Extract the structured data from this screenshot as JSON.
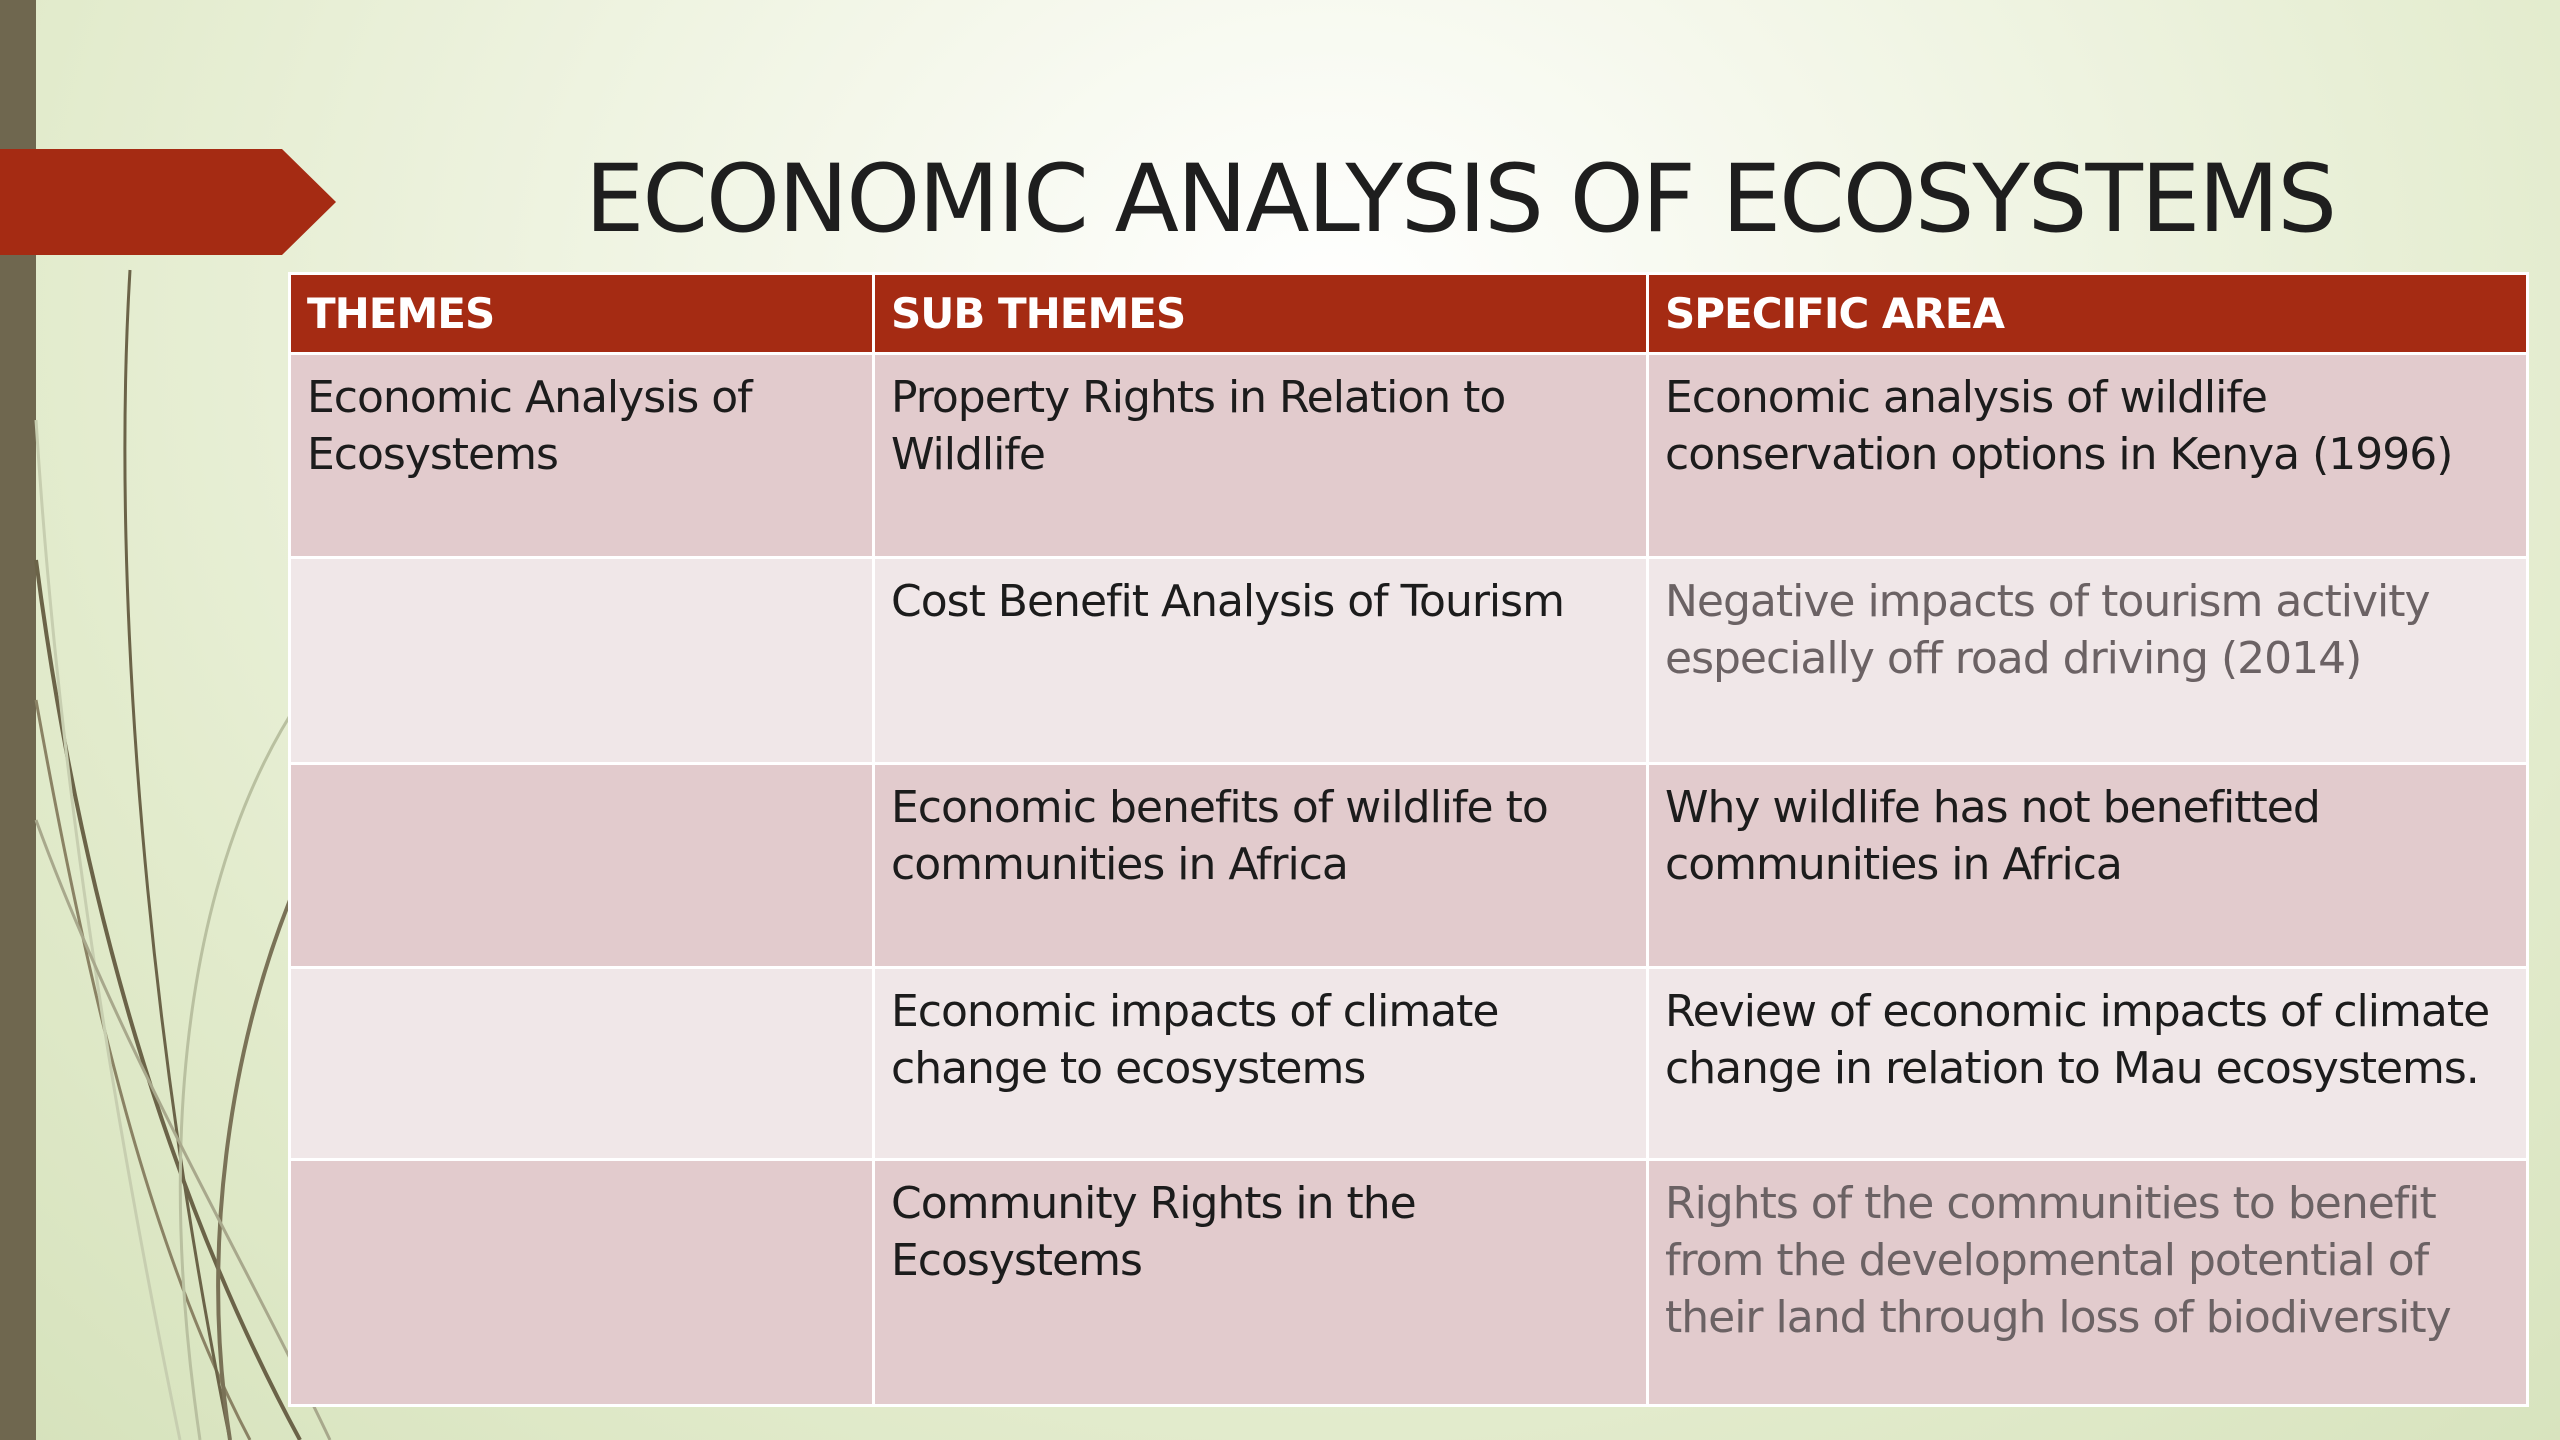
{
  "slide": {
    "title": "ECONOMIC ANALYSIS OF ECOSYSTEMS"
  },
  "table": {
    "headers": {
      "themes": "THEMES",
      "sub_themes": "SUB THEMES",
      "specific_area": "SPECIFIC AREA"
    },
    "rows": [
      {
        "theme": "Economic Analysis of Ecosystems",
        "sub_theme": "Property Rights in Relation to Wildlife",
        "specific_area": "Economic analysis of wildlife conservation options in Kenya (1996)"
      },
      {
        "theme": "",
        "sub_theme": "Cost Benefit Analysis of Tourism",
        "specific_area": "Negative impacts of tourism activity especially off road driving  (2014)"
      },
      {
        "theme": "",
        "sub_theme": "Economic benefits of wildlife to communities in Africa",
        "specific_area": "Why wildlife has not benefitted communities in Africa"
      },
      {
        "theme": "",
        "sub_theme": "Economic impacts of climate change to ecosystems",
        "specific_area": "Review of economic impacts of climate change in relation to Mau ecosystems."
      },
      {
        "theme": "",
        "sub_theme": "Community Rights in the Ecosystems",
        "specific_area": "Rights of the communities to benefit from the developmental potential of their land through loss of biodiversity"
      }
    ]
  },
  "colors": {
    "accent": "#a52b13",
    "left_bar": "#6f674f",
    "row_dark": "#e2cbcd",
    "row_light": "#f0e7e8",
    "background": "#e2ebcc"
  }
}
